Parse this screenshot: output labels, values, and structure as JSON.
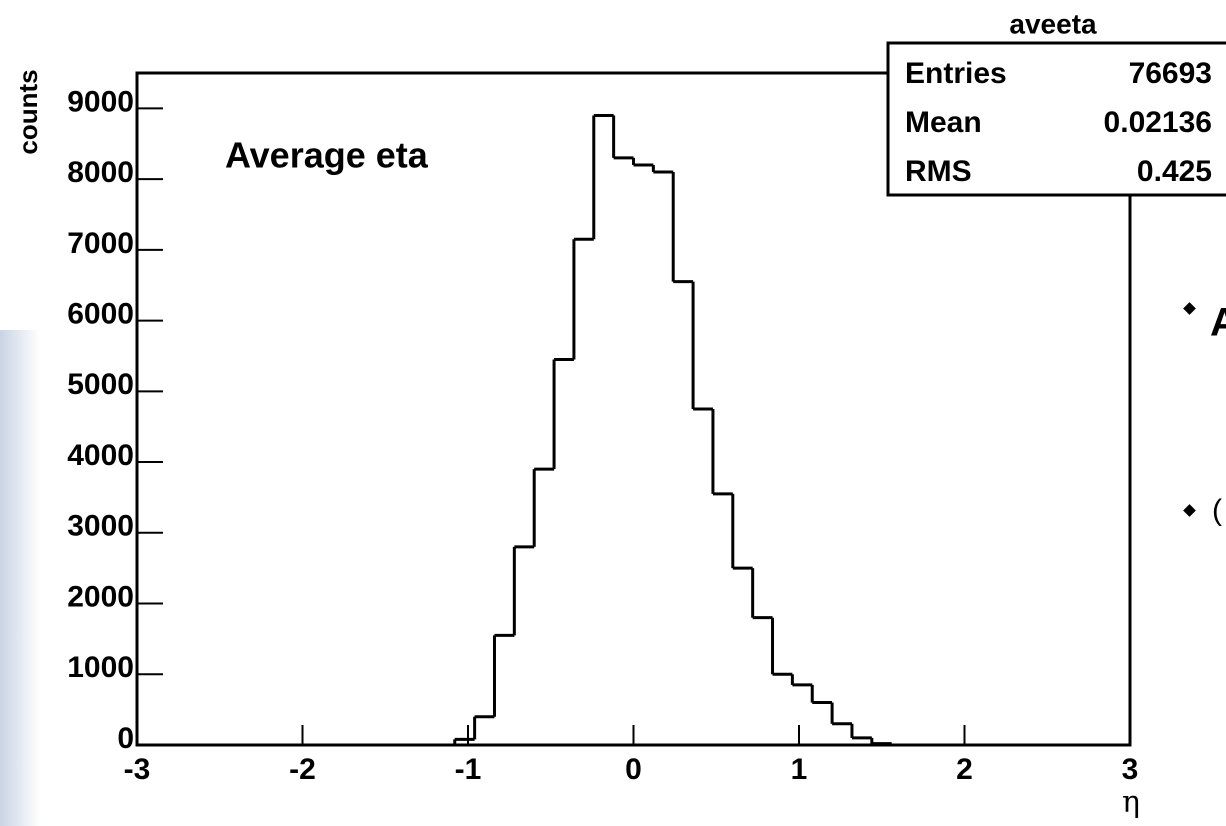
{
  "chart_data": {
    "type": "histogram",
    "title": "Average eta",
    "y_label": "counts",
    "x_label": "η",
    "bins": [
      -3,
      -2.88,
      -2.76,
      -2.64,
      -2.52,
      -2.4,
      -2.28,
      -2.16,
      -2.04,
      -1.92,
      -1.8,
      -1.68,
      -1.56,
      -1.44,
      -1.32,
      -1.2,
      -1.08,
      -0.96,
      -0.84,
      -0.72,
      -0.6,
      -0.48,
      -0.36,
      -0.24,
      -0.12,
      0,
      0.12,
      0.24,
      0.36,
      0.48,
      0.6,
      0.72,
      0.84,
      0.96,
      1.08,
      1.2,
      1.32,
      1.44,
      1.56,
      1.68,
      1.8,
      1.92,
      2.04,
      2.16,
      2.28,
      2.4,
      2.52,
      2.64,
      2.76,
      2.88,
      3
    ],
    "values": [
      0,
      0,
      0,
      0,
      0,
      0,
      0,
      0,
      0,
      0,
      0,
      0,
      0,
      0,
      0,
      0,
      80,
      400,
      1550,
      2800,
      3900,
      5450,
      7150,
      8900,
      8300,
      8200,
      8100,
      6550,
      4750,
      3550,
      2500,
      1800,
      1000,
      850,
      600,
      300,
      100,
      20,
      0,
      0,
      0,
      0,
      0,
      0,
      0,
      0,
      0,
      0,
      0,
      0
    ],
    "color": "#000000",
    "xlim": [
      -3,
      3
    ],
    "xticks": [
      -3,
      -2,
      -1,
      0,
      1,
      2,
      3
    ],
    "ylim": [
      0,
      9500
    ],
    "yticks": [
      0,
      1000,
      2000,
      3000,
      4000,
      5000,
      6000,
      7000,
      8000,
      9000
    ],
    "stats": {
      "name": "aveeta",
      "rows": [
        {
          "label": "Entries",
          "value": 76693
        },
        {
          "label": "Mean",
          "value": 0.02136
        },
        {
          "label": "RMS",
          "value": 0.425
        }
      ]
    }
  },
  "background": {
    "bullets": [
      "A",
      "("
    ]
  }
}
